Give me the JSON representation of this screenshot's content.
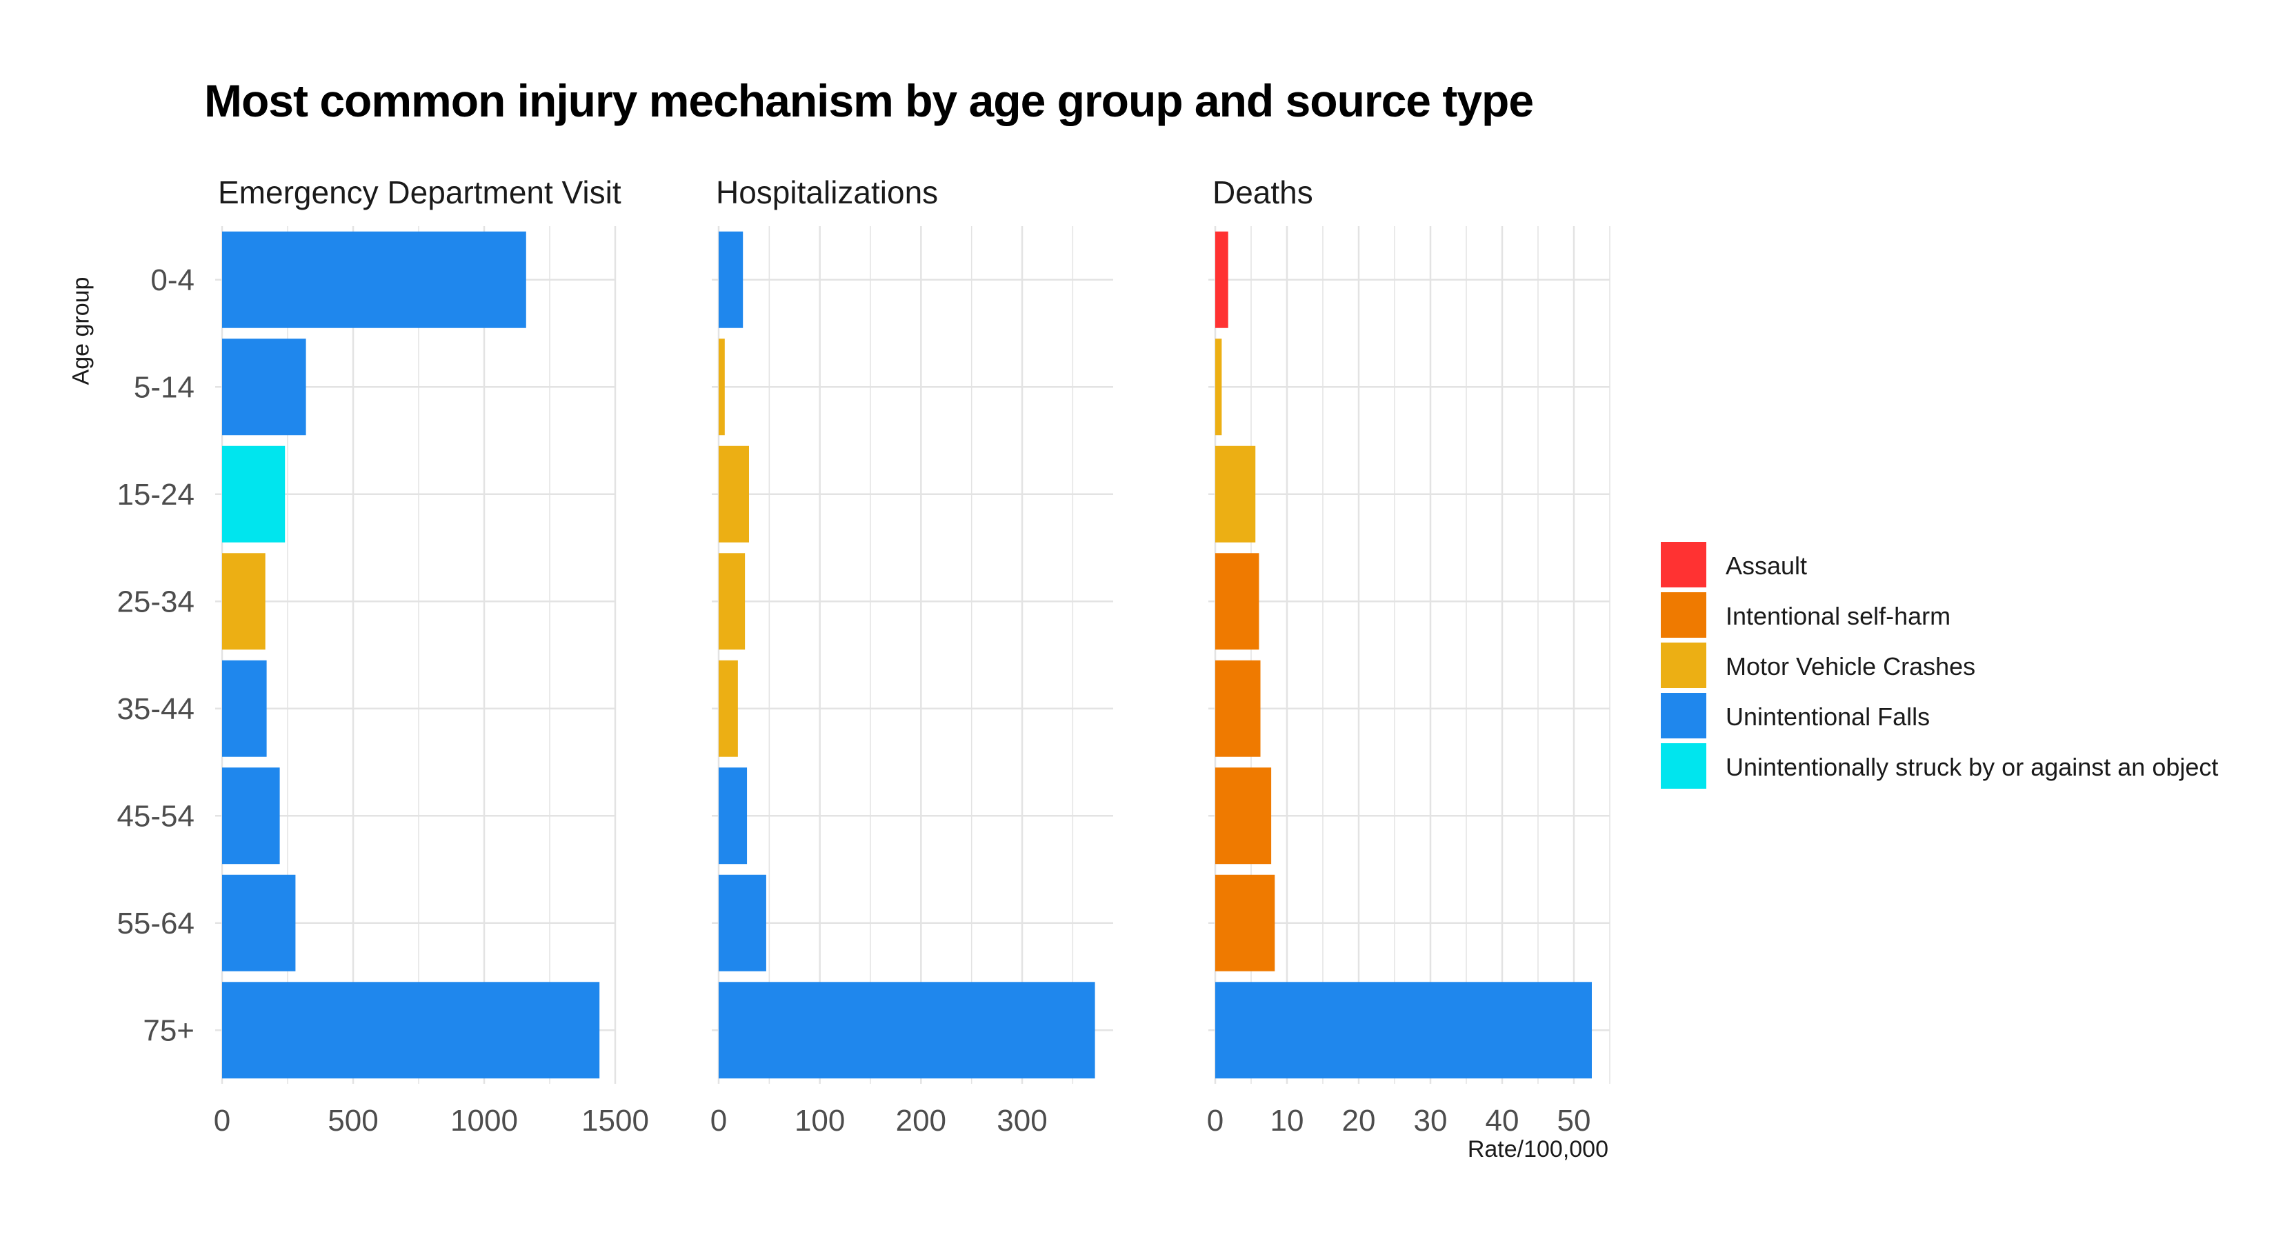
{
  "title": "Most common injury mechanism by age group and source type",
  "y_axis_label": "Age group",
  "x_axis_label": "Rate/100,000",
  "colors": {
    "Assault": "#ff3232",
    "Intentional self-harm": "#ef7a00",
    "Motor Vehicle Crashes": "#ecaf14",
    "Unintentional Falls": "#1f87ed",
    "Unintentionally struck by or against an object": "#00e5ee"
  },
  "legend": [
    {
      "label": "Assault",
      "color": "#ff3232"
    },
    {
      "label": "Intentional self-harm",
      "color": "#ef7a00"
    },
    {
      "label": "Motor Vehicle Crashes",
      "color": "#ecaf14"
    },
    {
      "label": "Unintentional Falls",
      "color": "#1f87ed"
    },
    {
      "label": "Unintentionally struck by or against an object",
      "color": "#00e5ee"
    }
  ],
  "chart_data": [
    {
      "type": "bar",
      "orientation": "horizontal",
      "title": "Emergency Department Visit",
      "categories": [
        "0-4",
        "5-14",
        "15-24",
        "25-34",
        "35-44",
        "45-54",
        "55-64",
        "75+"
      ],
      "values": [
        1160,
        320,
        240,
        165,
        170,
        220,
        280,
        1440
      ],
      "mechanism": [
        "Unintentional Falls",
        "Unintentional Falls",
        "Unintentionally struck by or against an object",
        "Motor Vehicle Crashes",
        "Unintentional Falls",
        "Unintentional Falls",
        "Unintentional Falls",
        "Unintentional Falls"
      ],
      "xlim": [
        0,
        1500
      ],
      "xticks": [
        0,
        500,
        1000,
        1500
      ],
      "xtick_labels": [
        "0",
        "500",
        "1000",
        "1500"
      ],
      "grid": true
    },
    {
      "type": "bar",
      "orientation": "horizontal",
      "title": "Hospitalizations",
      "categories": [
        "0-4",
        "5-14",
        "15-24",
        "25-34",
        "35-44",
        "45-54",
        "55-64",
        "75+"
      ],
      "values": [
        24,
        6,
        30,
        26,
        19,
        28,
        47,
        372
      ],
      "mechanism": [
        "Unintentional Falls",
        "Motor Vehicle Crashes",
        "Motor Vehicle Crashes",
        "Motor Vehicle Crashes",
        "Motor Vehicle Crashes",
        "Unintentional Falls",
        "Unintentional Falls",
        "Unintentional Falls"
      ],
      "xlim": [
        0,
        390
      ],
      "xticks": [
        0,
        100,
        200,
        300
      ],
      "xtick_labels": [
        "0",
        "100",
        "200",
        "300"
      ],
      "grid": true
    },
    {
      "type": "bar",
      "orientation": "horizontal",
      "title": "Deaths",
      "categories": [
        "0-4",
        "5-14",
        "15-24",
        "25-34",
        "35-44",
        "45-54",
        "55-64",
        "75+"
      ],
      "values": [
        1.8,
        0.9,
        5.6,
        6.1,
        6.3,
        7.8,
        8.3,
        52.5
      ],
      "mechanism": [
        "Assault",
        "Motor Vehicle Crashes",
        "Motor Vehicle Crashes",
        "Intentional self-harm",
        "Intentional self-harm",
        "Intentional self-harm",
        "Intentional self-harm",
        "Unintentional Falls"
      ],
      "xlim": [
        0,
        55
      ],
      "xticks": [
        0,
        10,
        20,
        30,
        40,
        50
      ],
      "xtick_labels": [
        "0",
        "10",
        "20",
        "30",
        "40",
        "50"
      ],
      "grid": true
    }
  ]
}
